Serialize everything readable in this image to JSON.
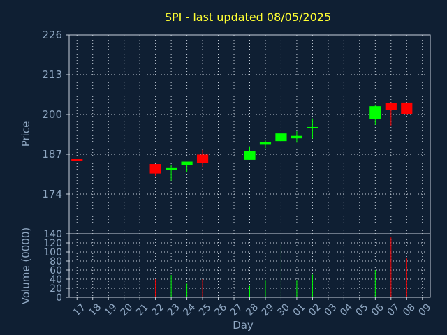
{
  "chart_data": [
    {
      "type": "candlestick",
      "title": "SPI - last updated 08/05/2025",
      "ylabel": "Price",
      "xlabel": "Day",
      "ylim": [
        161,
        226
      ],
      "yticks": [
        174,
        187,
        200,
        213,
        226
      ],
      "grid": true,
      "colors": {
        "up": "#00ff00",
        "down": "#ff0000",
        "title": "#ffff33",
        "axis": "#8fa7c2",
        "background": "#0f1f33"
      },
      "categories": [
        "17",
        "18",
        "19",
        "20",
        "21",
        "22",
        "23",
        "24",
        "25",
        "26",
        "27",
        "28",
        "29",
        "30",
        "01",
        "02",
        "03",
        "04",
        "05",
        "06",
        "07",
        "08",
        "09"
      ],
      "candles": [
        {
          "day": "17",
          "open": 185.4,
          "high": 185.4,
          "low": 185.4,
          "close": 184.8
        },
        {
          "day": "22",
          "open": 183.8,
          "high": 183.8,
          "low": 179.9,
          "close": 180.7
        },
        {
          "day": "23",
          "open": 181.9,
          "high": 183.6,
          "low": 178.4,
          "close": 182.7
        },
        {
          "day": "24",
          "open": 183.4,
          "high": 184.4,
          "low": 181.1,
          "close": 184.6
        },
        {
          "day": "25",
          "open": 186.9,
          "high": 188.4,
          "low": 182.9,
          "close": 184.1
        },
        {
          "day": "28",
          "open": 185.2,
          "high": 189.6,
          "low": 185.2,
          "close": 188.1
        },
        {
          "day": "29",
          "open": 190.1,
          "high": 191.5,
          "low": 189.0,
          "close": 190.9
        },
        {
          "day": "30",
          "open": 191.3,
          "high": 193.8,
          "low": 191.3,
          "close": 193.8
        },
        {
          "day": "01",
          "open": 192.2,
          "high": 194.5,
          "low": 190.8,
          "close": 193.0
        },
        {
          "day": "02",
          "open": 195.6,
          "high": 198.7,
          "low": 192.1,
          "close": 195.9
        },
        {
          "day": "06",
          "open": 198.4,
          "high": 203.2,
          "low": 196.6,
          "close": 202.7
        },
        {
          "day": "07",
          "open": 203.7,
          "high": 204.0,
          "low": 196.4,
          "close": 201.5
        },
        {
          "day": "08",
          "open": 203.9,
          "high": 203.9,
          "low": 199.8,
          "close": 200.0
        }
      ]
    },
    {
      "type": "bar",
      "ylabel": "Volume (0000)",
      "xlabel": "Day",
      "ylim": [
        0,
        140
      ],
      "yticks": [
        0,
        20,
        40,
        60,
        80,
        100,
        120,
        140
      ],
      "grid": true,
      "categories": [
        "17",
        "18",
        "19",
        "20",
        "21",
        "22",
        "23",
        "24",
        "25",
        "26",
        "27",
        "28",
        "29",
        "30",
        "01",
        "02",
        "03",
        "04",
        "05",
        "06",
        "07",
        "08",
        "09"
      ],
      "bars": [
        {
          "day": "22",
          "value": 40,
          "color": "#ff0000"
        },
        {
          "day": "23",
          "value": 49,
          "color": "#00ff00"
        },
        {
          "day": "24",
          "value": 30,
          "color": "#00ff00"
        },
        {
          "day": "25",
          "value": 40,
          "color": "#ff0000"
        },
        {
          "day": "28",
          "value": 25,
          "color": "#00ff00"
        },
        {
          "day": "29",
          "value": 38,
          "color": "#00ff00"
        },
        {
          "day": "30",
          "value": 117,
          "color": "#00ff00"
        },
        {
          "day": "01",
          "value": 38,
          "color": "#00ff00"
        },
        {
          "day": "02",
          "value": 50,
          "color": "#00ff00"
        },
        {
          "day": "06",
          "value": 60,
          "color": "#00ff00"
        },
        {
          "day": "07",
          "value": 132,
          "color": "#ff0000"
        },
        {
          "day": "08",
          "value": 86,
          "color": "#ff0000"
        }
      ]
    }
  ]
}
